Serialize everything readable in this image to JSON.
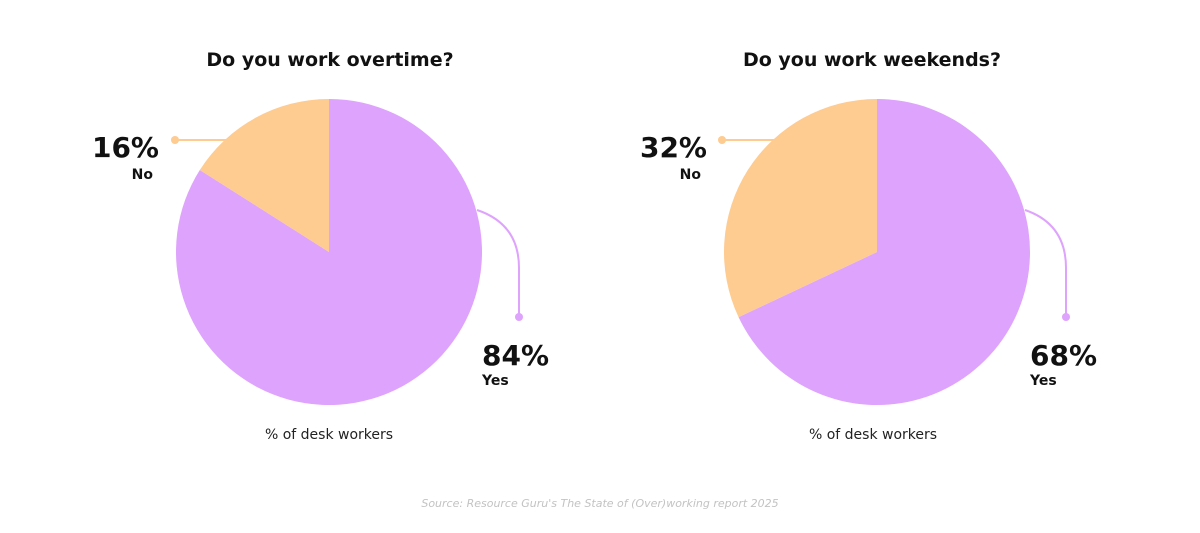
{
  "colors": {
    "yes": "#dea3fc",
    "no": "#fecb91",
    "text": "#111111",
    "source": "#c3c3c3"
  },
  "chart_data": [
    {
      "type": "pie",
      "title": "Do you work overtime?",
      "caption": "% of desk workers",
      "slices": [
        {
          "label": "Yes",
          "value": 84,
          "display": "84%",
          "color": "#dea3fc"
        },
        {
          "label": "No",
          "value": 16,
          "display": "16%",
          "color": "#fecb91"
        }
      ]
    },
    {
      "type": "pie",
      "title": "Do you work weekends?",
      "caption": "% of desk workers",
      "slices": [
        {
          "label": "Yes",
          "value": 68,
          "display": "68%",
          "color": "#dea3fc"
        },
        {
          "label": "No",
          "value": 32,
          "display": "32%",
          "color": "#fecb91"
        }
      ]
    }
  ],
  "source": "Source: Resource Guru's The State of (Over)working report 2025"
}
